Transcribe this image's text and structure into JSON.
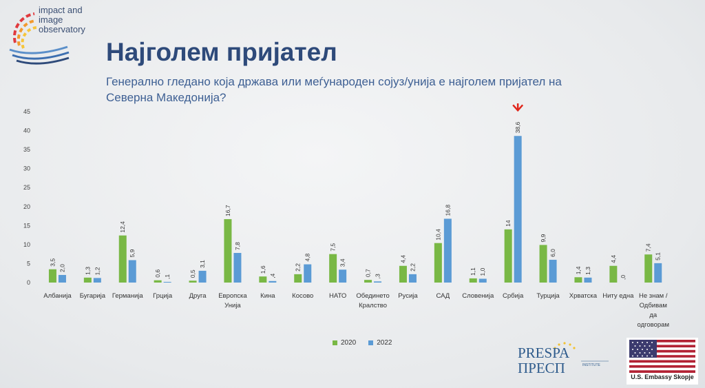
{
  "header": {
    "logo_lines": [
      "impact and",
      "image",
      "observatory"
    ],
    "title": "Најголем пријател",
    "subtitle": "Генерално гледано која држава или меѓународен сојуз/унија е најголем пријател на Северна Македонија?"
  },
  "colors": {
    "series_2020": "#79b845",
    "series_2022": "#5b9bd5",
    "arrow": "#e0261b"
  },
  "chart_data": {
    "type": "bar",
    "categories": [
      [
        "Албанија"
      ],
      [
        "Бугарија"
      ],
      [
        "Германија"
      ],
      [
        "Грција"
      ],
      [
        "Друга"
      ],
      [
        "Европска",
        "Унија"
      ],
      [
        "Кина"
      ],
      [
        "Косово"
      ],
      [
        "НАТО"
      ],
      [
        "Обединето",
        "Кралство"
      ],
      [
        "Русија"
      ],
      [
        "САД"
      ],
      [
        "Словенија"
      ],
      [
        "Србија"
      ],
      [
        "Турција"
      ],
      [
        "Хрватска"
      ],
      [
        "Ниту една"
      ],
      [
        "Не знам /",
        "Одбивам",
        "да",
        "одговорам"
      ]
    ],
    "series": [
      {
        "name": "2020",
        "values": [
          3.5,
          1.3,
          12.4,
          0.6,
          0.5,
          16.7,
          1.6,
          2.2,
          7.5,
          0.7,
          4.4,
          10.4,
          1.1,
          14,
          9.9,
          1.4,
          4.4,
          7.4
        ],
        "labels": [
          "3,5",
          "1,3",
          "12,4",
          "0,6",
          "0,5",
          "16,7",
          "1,6",
          "2,2",
          "7,5",
          "0,7",
          "4,4",
          "10,4",
          "1,1",
          "14",
          "9,9",
          "1,4",
          "4,4",
          "7,4"
        ]
      },
      {
        "name": "2022",
        "values": [
          2.0,
          1.2,
          5.9,
          0.1,
          3.1,
          7.8,
          0.4,
          4.8,
          3.4,
          0.3,
          2.2,
          16.8,
          1.0,
          38.6,
          6.0,
          1.3,
          0.0,
          5.1
        ],
        "labels": [
          "2,0",
          "1,2",
          "5,9",
          ",1",
          "3,1",
          "7,8",
          ",4",
          "4,8",
          "3,4",
          ",3",
          "2,2",
          "16,8",
          "1,0",
          "38,6",
          "6,0",
          "1,3",
          ",0",
          "5,1"
        ]
      }
    ],
    "ylim": [
      0,
      45
    ],
    "yticks": [
      0,
      5,
      10,
      15,
      20,
      25,
      30,
      35,
      40,
      45
    ],
    "highlight_category": "Србија",
    "grid": false,
    "legend": "bottom-center"
  },
  "footer": {
    "prespa_top": "PRESPA",
    "prespa_bottom": "ПРЕСП",
    "prespa_small1": "INSTITUTE",
    "embassy": "U.S. Embassy Skopje"
  }
}
